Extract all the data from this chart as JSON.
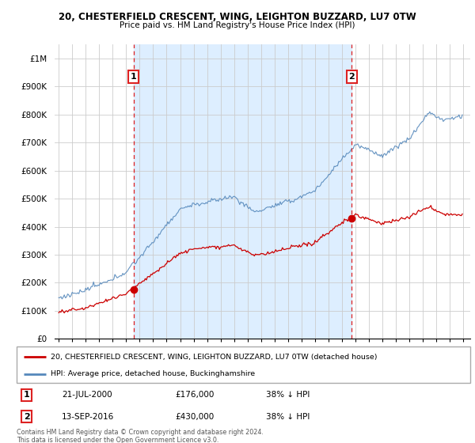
{
  "title1": "20, CHESTERFIELD CRESCENT, WING, LEIGHTON BUZZARD, LU7 0TW",
  "title2": "Price paid vs. HM Land Registry's House Price Index (HPI)",
  "red_label": "20, CHESTERFIELD CRESCENT, WING, LEIGHTON BUZZARD, LU7 0TW (detached house)",
  "blue_label": "HPI: Average price, detached house, Buckinghamshire",
  "annotation1": {
    "num": "1",
    "date": "21-JUL-2000",
    "price": "£176,000",
    "pct": "38% ↓ HPI"
  },
  "annotation2": {
    "num": "2",
    "date": "13-SEP-2016",
    "price": "£430,000",
    "pct": "38% ↓ HPI"
  },
  "footer": "Contains HM Land Registry data © Crown copyright and database right 2024.\nThis data is licensed under the Open Government Licence v3.0.",
  "ylim": [
    0,
    1050000
  ],
  "yticks": [
    0,
    100000,
    200000,
    300000,
    400000,
    500000,
    600000,
    700000,
    800000,
    900000,
    1000000
  ],
  "ytick_labels": [
    "£0",
    "£100K",
    "£200K",
    "£300K",
    "£400K",
    "£500K",
    "£600K",
    "£700K",
    "£800K",
    "£900K",
    "£1M"
  ],
  "vline1_year": 2000.54,
  "vline2_year": 2016.71,
  "sale1_year": 2000.54,
  "sale1_price": 176000,
  "sale2_year": 2016.71,
  "sale2_price": 430000,
  "red_color": "#cc0000",
  "blue_color": "#5588bb",
  "vline_color": "#dd2222",
  "fill_color": "#ddeeff",
  "dot_color": "#cc0000",
  "xlim_start": 1994.7,
  "xlim_end": 2025.5
}
